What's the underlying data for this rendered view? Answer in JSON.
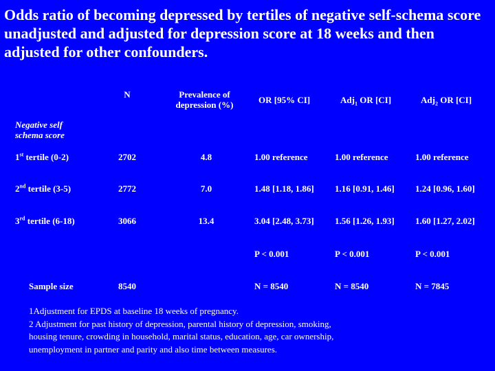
{
  "title": "Odds ratio of becoming depressed by tertiles of negative self-schema score unadjusted and adjusted for depression score at 18 weeks and then adjusted for other confounders.",
  "table": {
    "headers": {
      "n": "N",
      "prevalence_line1": "Prevalence of",
      "prevalence_line2": "depression (%)",
      "or": "OR [95% CI]",
      "adj1_pre": "Adj",
      "adj1_sub": "1",
      "adj1_post": " OR [CI]",
      "adj2_pre": "Adj",
      "adj2_sub": "2",
      "adj2_post": " OR [CI]"
    },
    "row_label_header_line1": "Negative self",
    "row_label_header_line2": "schema score",
    "rows": [
      {
        "label_num": "1",
        "label_sup": "st",
        "label_rest": " tertile (0-2)",
        "n": "2702",
        "prev": "4.8",
        "or": "1.00 reference",
        "adj1": "1.00 reference",
        "adj2": "1.00 reference"
      },
      {
        "label_num": "2",
        "label_sup": "nd",
        "label_rest": " tertile (3-5)",
        "n": "2772",
        "prev": "7.0",
        "or": "1.48 [1.18, 1.86]",
        "adj1": "1.16 [0.91, 1.46]",
        "adj2": "1.24 [0.96, 1.60]"
      },
      {
        "label_num": "3",
        "label_sup": "rd",
        "label_rest": " tertile (6-18)",
        "n": "3066",
        "prev": "13.4",
        "or": "3.04 [2.48, 3.73]",
        "adj1": "1.56 [1.26, 1.93]",
        "adj2": "1.60 [1.27, 2.02]"
      }
    ],
    "p_values": {
      "or": "P < 0.001",
      "adj1": "P < 0.001",
      "adj2": "P < 0.001"
    },
    "sample_size": {
      "label": "Sample size",
      "n": "8540",
      "or": "N = 8540",
      "adj1": "N = 8540",
      "adj2": "N = 7845"
    }
  },
  "footnotes": [
    "1Adjustment for EPDS at baseline 18 weeks of pregnancy.",
    "2 Adjustment for past history of depression, parental history of depression, smoking,",
    "housing tenure, crowding in household, marital status, education, age, car ownership,",
    "unemployment in partner and parity and also time between measures."
  ],
  "colors": {
    "background": "#0000FF",
    "text": "#FFFFFF"
  }
}
